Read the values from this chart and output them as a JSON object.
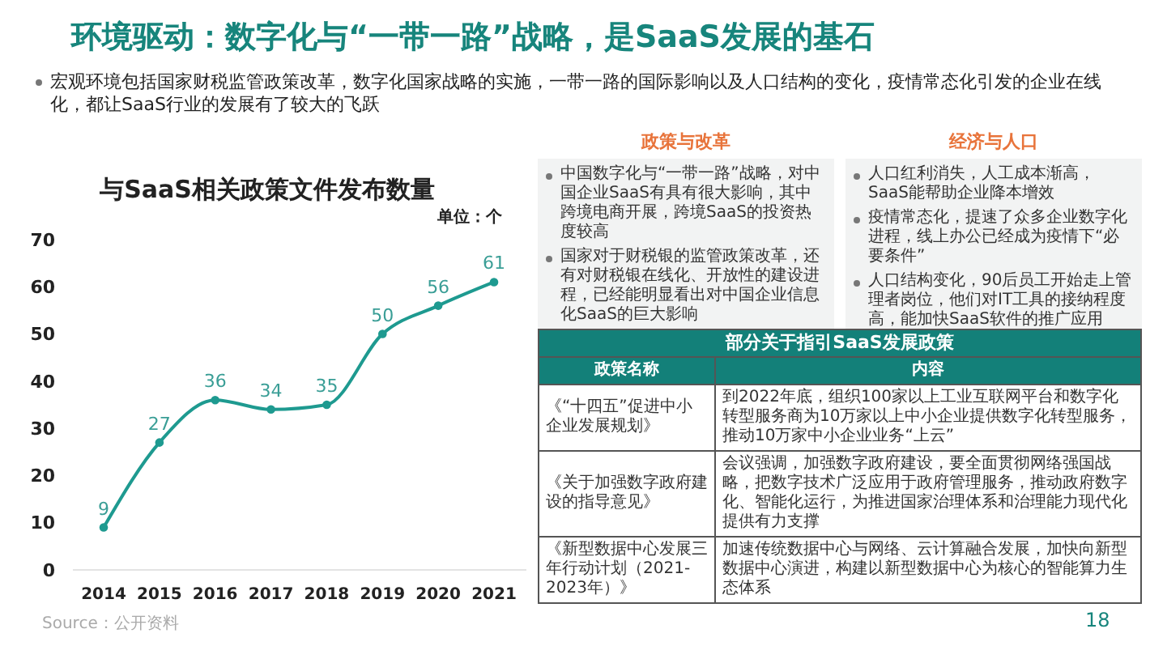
{
  "chart_data": {
    "type": "line",
    "title": "与SaaS相关政策文件发布数量",
    "ylabel": "单位：个",
    "categories": [
      "2014",
      "2015",
      "2016",
      "2017",
      "2018",
      "2019",
      "2020",
      "2021"
    ],
    "series": [
      {
        "color": "#1e9a90",
        "values": [
          9,
          27,
          36,
          34,
          35,
          50,
          56,
          61
        ]
      }
    ],
    "ylim": [
      0,
      70
    ],
    "yticks": [
      0,
      10,
      20,
      30,
      40,
      50,
      60,
      70
    ],
    "grid": false,
    "marker": "circle",
    "line_style": "solid",
    "data_labels": true,
    "annotations": [
      "环境驱动：数字化与“一带一路”战略，是SaaS发展的基石",
      "宏观环境包括国家财税监管政策改革，数字化国家战略的实施，一带一路的国际影响以及人口结构的变化，疫情常态化引发的企业在线化，都让SaaS行业的发展有了较大的飞跃",
      "政策与改革",
      "中国数字化与“一带一路”战略，对中国企业SaaS有具有很大影响，其中跨境电商开展，跨境SaaS的投资热度较高",
      "国家对于财税银的监管政策改革，还有对财税银在线化、开放性的建设进程，已经能明显看出对中国企业信息化SaaS的巨大影响",
      "经济与人口",
      "人口红利消失，人工成本渐高，SaaS能帮助企业降本增效",
      "疫情常态化，提速了众多企业数字化进程，线上办公已经成为疫情下“必要条件”",
      "人口结构变化，90后员工开始走上管理者岗位，他们对IT工具的接纳程度高，能加快SaaS软件的推广应用",
      "部分关于指引SaaS发展政策",
      "政策名称",
      "内容",
      "《“十四五”促进中小企业发展规划》",
      "到2022年底，组织100家以上工业互联网平台和数字化转型服务商为10万家以上中小企业提供数字化转型服务，推动10万家中小企业业务“上云”",
      "《关于加强数字政府建设的指导意见》",
      "会议强调，加强数字政府建设，要全面贯彻网络强国战略，把数字技术广泛应用于政府管理服务，推动政府数字化、智能化运行，为推进国家治理体系和治理能力现代化提供有力支撑",
      "《新型数据中心发展三年行动计划（2021-2023年）》",
      "加速传统数据中心与网络、云计算融合发展，加快向新型数据中心演进，构建以新型数据中心为核心的智能算力生态体系",
      "Source：公开资料",
      "18"
    ]
  }
}
